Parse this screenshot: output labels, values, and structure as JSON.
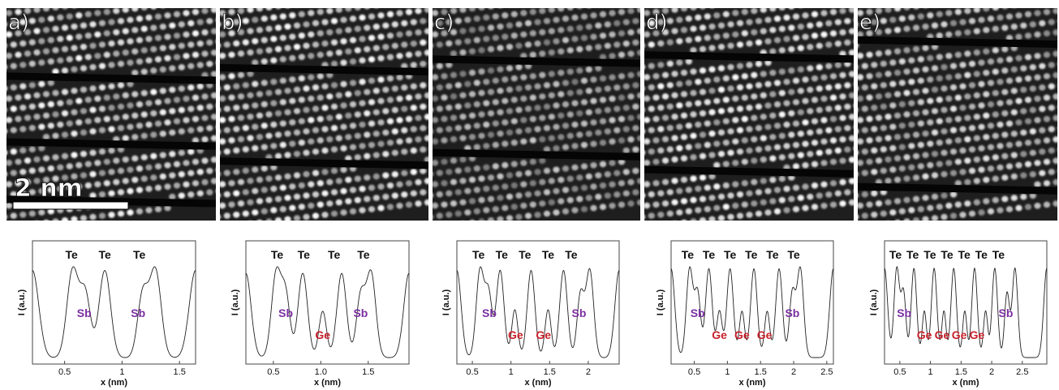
{
  "colors": {
    "sb": "#7a2fa0",
    "ge": "#c8202a",
    "te": "#111111"
  },
  "scale_bar": {
    "label": "2 nm",
    "length_nm": 2
  },
  "panels": [
    {
      "label": "a)",
      "bands": [
        0.32,
        0.63,
        0.9
      ],
      "tilt": -0.02,
      "tone": 1.0,
      "profile": {
        "xlabel": "x (nm)",
        "ylabel": "I (a.u.)",
        "xticks": [
          {
            "v": 0.5,
            "t": "0.5"
          },
          {
            "v": 1.0,
            "t": "1"
          },
          {
            "v": 1.5,
            "t": "1.5"
          }
        ],
        "xlim": [
          0.22,
          1.64
        ],
        "peaks": [
          {
            "x": 0.22,
            "h": 1.0,
            "w": 0.055
          },
          {
            "x": 0.57,
            "h": 1.0,
            "w": 0.05
          },
          {
            "x": 0.68,
            "h": 0.72,
            "w": 0.045
          },
          {
            "x": 0.85,
            "h": 1.0,
            "w": 0.05
          },
          {
            "x": 1.18,
            "h": 0.72,
            "w": 0.045
          },
          {
            "x": 1.29,
            "h": 1.0,
            "w": 0.05
          },
          {
            "x": 1.64,
            "h": 1.0,
            "w": 0.055
          }
        ],
        "labels": [
          {
            "t": "Te",
            "x": 0.56,
            "row": 0,
            "c": "te"
          },
          {
            "t": "Te",
            "x": 0.85,
            "row": 0,
            "c": "te"
          },
          {
            "t": "Te",
            "x": 1.15,
            "row": 0,
            "c": "te"
          },
          {
            "t": "Sb",
            "x": 0.67,
            "row": 1,
            "c": "sb"
          },
          {
            "t": "Sb",
            "x": 1.14,
            "row": 1,
            "c": "sb"
          }
        ]
      }
    },
    {
      "label": "b)",
      "bands": [
        0.28,
        0.72
      ],
      "tilt": -0.02,
      "tone": 1.0,
      "profile": {
        "xlabel": "x (nm)",
        "ylabel": "I (a.u.)",
        "xticks": [
          {
            "v": 0.5,
            "t": "0.5"
          },
          {
            "v": 1.0,
            "t": "1.0"
          },
          {
            "v": 1.5,
            "t": "1.5"
          }
        ],
        "xlim": [
          0.21,
          1.93
        ],
        "peaks": [
          {
            "x": 0.21,
            "h": 1.0,
            "w": 0.055
          },
          {
            "x": 0.53,
            "h": 1.0,
            "w": 0.05
          },
          {
            "x": 0.63,
            "h": 0.72,
            "w": 0.045
          },
          {
            "x": 0.81,
            "h": 1.0,
            "w": 0.05
          },
          {
            "x": 1.02,
            "h": 0.55,
            "w": 0.04
          },
          {
            "x": 1.22,
            "h": 1.0,
            "w": 0.05
          },
          {
            "x": 1.42,
            "h": 0.72,
            "w": 0.045
          },
          {
            "x": 1.53,
            "h": 1.0,
            "w": 0.05
          },
          {
            "x": 1.93,
            "h": 1.0,
            "w": 0.055
          }
        ],
        "labels": [
          {
            "t": "Te",
            "x": 0.54,
            "row": 0,
            "c": "te"
          },
          {
            "t": "Te",
            "x": 0.82,
            "row": 0,
            "c": "te"
          },
          {
            "t": "Te",
            "x": 1.14,
            "row": 0,
            "c": "te"
          },
          {
            "t": "Te",
            "x": 1.45,
            "row": 0,
            "c": "te"
          },
          {
            "t": "Sb",
            "x": 0.63,
            "row": 1,
            "c": "sb"
          },
          {
            "t": "Sb",
            "x": 1.42,
            "row": 1,
            "c": "sb"
          },
          {
            "t": "Ge",
            "x": 1.02,
            "row": 2,
            "c": "ge"
          }
        ]
      }
    },
    {
      "label": "c)",
      "bands": [
        0.24,
        0.68
      ],
      "tilt": -0.02,
      "tone": 0.8,
      "profile": {
        "xlabel": "x (nm)",
        "ylabel": "I (a.u.)",
        "xticks": [
          {
            "v": 0.5,
            "t": "0.5"
          },
          {
            "v": 1.0,
            "t": "1"
          },
          {
            "v": 1.5,
            "t": "1.5"
          },
          {
            "v": 2.0,
            "t": "2"
          }
        ],
        "xlim": [
          0.3,
          2.4
        ],
        "peaks": [
          {
            "x": 0.3,
            "h": 1.0,
            "w": 0.055
          },
          {
            "x": 0.6,
            "h": 1.0,
            "w": 0.05
          },
          {
            "x": 0.71,
            "h": 0.72,
            "w": 0.045
          },
          {
            "x": 0.86,
            "h": 1.0,
            "w": 0.05
          },
          {
            "x": 1.05,
            "h": 0.55,
            "w": 0.04
          },
          {
            "x": 1.26,
            "h": 1.0,
            "w": 0.05
          },
          {
            "x": 1.48,
            "h": 0.55,
            "w": 0.04
          },
          {
            "x": 1.68,
            "h": 1.0,
            "w": 0.05
          },
          {
            "x": 1.9,
            "h": 0.72,
            "w": 0.045
          },
          {
            "x": 2.02,
            "h": 1.0,
            "w": 0.05
          },
          {
            "x": 2.4,
            "h": 1.0,
            "w": 0.055
          }
        ],
        "labels": [
          {
            "t": "Te",
            "x": 0.58,
            "row": 0,
            "c": "te"
          },
          {
            "t": "Te",
            "x": 0.88,
            "row": 0,
            "c": "te"
          },
          {
            "t": "Te",
            "x": 1.18,
            "row": 0,
            "c": "te"
          },
          {
            "t": "Te",
            "x": 1.48,
            "row": 0,
            "c": "te"
          },
          {
            "t": "Te",
            "x": 1.78,
            "row": 0,
            "c": "te"
          },
          {
            "t": "Sb",
            "x": 0.72,
            "row": 1,
            "c": "sb"
          },
          {
            "t": "Sb",
            "x": 1.88,
            "row": 1,
            "c": "sb"
          },
          {
            "t": "Ge",
            "x": 1.06,
            "row": 2,
            "c": "ge"
          },
          {
            "t": "Ge",
            "x": 1.42,
            "row": 2,
            "c": "ge"
          }
        ]
      }
    },
    {
      "label": "d)",
      "bands": [
        0.22,
        0.76
      ],
      "tilt": -0.02,
      "tone": 1.0,
      "profile": {
        "xlabel": "x (nm)",
        "ylabel": "I (a.u.)",
        "xticks": [
          {
            "v": 0.5,
            "t": "0.5"
          },
          {
            "v": 1.0,
            "t": "1"
          },
          {
            "v": 1.5,
            "t": "1.5"
          },
          {
            "v": 2.0,
            "t": "2"
          },
          {
            "v": 2.5,
            "t": "2.5"
          }
        ],
        "xlim": [
          0.15,
          2.6
        ],
        "peaks": [
          {
            "x": 0.15,
            "h": 1.0,
            "w": 0.055
          },
          {
            "x": 0.43,
            "h": 1.0,
            "w": 0.05
          },
          {
            "x": 0.55,
            "h": 0.72,
            "w": 0.045
          },
          {
            "x": 0.72,
            "h": 1.0,
            "w": 0.05
          },
          {
            "x": 0.88,
            "h": 0.52,
            "w": 0.04
          },
          {
            "x": 1.04,
            "h": 1.0,
            "w": 0.05
          },
          {
            "x": 1.22,
            "h": 0.52,
            "w": 0.04
          },
          {
            "x": 1.4,
            "h": 1.0,
            "w": 0.05
          },
          {
            "x": 1.6,
            "h": 0.52,
            "w": 0.04
          },
          {
            "x": 1.78,
            "h": 1.0,
            "w": 0.05
          },
          {
            "x": 1.98,
            "h": 0.72,
            "w": 0.045
          },
          {
            "x": 2.1,
            "h": 1.0,
            "w": 0.05
          },
          {
            "x": 2.6,
            "h": 1.0,
            "w": 0.055
          }
        ],
        "labels": [
          {
            "t": "Te",
            "x": 0.4,
            "row": 0,
            "c": "te"
          },
          {
            "t": "Te",
            "x": 0.72,
            "row": 0,
            "c": "te"
          },
          {
            "t": "Te",
            "x": 1.04,
            "row": 0,
            "c": "te"
          },
          {
            "t": "Te",
            "x": 1.36,
            "row": 0,
            "c": "te"
          },
          {
            "t": "Te",
            "x": 1.68,
            "row": 0,
            "c": "te"
          },
          {
            "t": "Te",
            "x": 2.0,
            "row": 0,
            "c": "te"
          },
          {
            "t": "Sb",
            "x": 0.55,
            "row": 1,
            "c": "sb"
          },
          {
            "t": "Sb",
            "x": 1.98,
            "row": 1,
            "c": "sb"
          },
          {
            "t": "Ge",
            "x": 0.88,
            "row": 2,
            "c": "ge"
          },
          {
            "t": "Ge",
            "x": 1.22,
            "row": 2,
            "c": "ge"
          },
          {
            "t": "Ge",
            "x": 1.56,
            "row": 2,
            "c": "ge"
          }
        ]
      }
    },
    {
      "label": "e)",
      "bands": [
        0.15,
        0.84
      ],
      "tilt": -0.02,
      "tone": 0.92,
      "profile": {
        "xlabel": "x (nm)",
        "ylabel": "I (a.u.)",
        "xticks": [
          {
            "v": 0.5,
            "t": "0.5"
          },
          {
            "v": 1.0,
            "t": "1"
          },
          {
            "v": 1.5,
            "t": "1.5"
          },
          {
            "v": 2.0,
            "t": "2"
          },
          {
            "v": 2.5,
            "t": "2.5"
          }
        ],
        "xlim": [
          0.25,
          2.9
        ],
        "peaks": [
          {
            "x": 0.25,
            "h": 1.0,
            "w": 0.05
          },
          {
            "x": 0.45,
            "h": 1.0,
            "w": 0.045
          },
          {
            "x": 0.56,
            "h": 0.72,
            "w": 0.04
          },
          {
            "x": 0.73,
            "h": 1.0,
            "w": 0.045
          },
          {
            "x": 0.9,
            "h": 0.52,
            "w": 0.035
          },
          {
            "x": 1.06,
            "h": 1.0,
            "w": 0.045
          },
          {
            "x": 1.22,
            "h": 0.52,
            "w": 0.035
          },
          {
            "x": 1.38,
            "h": 1.0,
            "w": 0.045
          },
          {
            "x": 1.56,
            "h": 0.52,
            "w": 0.035
          },
          {
            "x": 1.72,
            "h": 1.0,
            "w": 0.045
          },
          {
            "x": 1.9,
            "h": 0.52,
            "w": 0.035
          },
          {
            "x": 2.05,
            "h": 1.0,
            "w": 0.045
          },
          {
            "x": 2.25,
            "h": 0.72,
            "w": 0.04
          },
          {
            "x": 2.38,
            "h": 1.0,
            "w": 0.045
          },
          {
            "x": 2.9,
            "h": 1.0,
            "w": 0.05
          }
        ],
        "labels": [
          {
            "t": "Te",
            "x": 0.43,
            "row": 0,
            "c": "te"
          },
          {
            "t": "Te",
            "x": 0.71,
            "row": 0,
            "c": "te"
          },
          {
            "t": "Te",
            "x": 0.99,
            "row": 0,
            "c": "te"
          },
          {
            "t": "Te",
            "x": 1.27,
            "row": 0,
            "c": "te"
          },
          {
            "t": "Te",
            "x": 1.55,
            "row": 0,
            "c": "te"
          },
          {
            "t": "Te",
            "x": 1.83,
            "row": 0,
            "c": "te"
          },
          {
            "t": "Te",
            "x": 2.11,
            "row": 0,
            "c": "te"
          },
          {
            "t": "Sb",
            "x": 0.57,
            "row": 1,
            "c": "sb"
          },
          {
            "t": "Sb",
            "x": 2.23,
            "row": 1,
            "c": "sb"
          },
          {
            "t": "Ge",
            "x": 0.9,
            "row": 2,
            "c": "ge"
          },
          {
            "t": "Ge",
            "x": 1.19,
            "row": 2,
            "c": "ge"
          },
          {
            "t": "Ge",
            "x": 1.47,
            "row": 2,
            "c": "ge"
          },
          {
            "t": "Ge",
            "x": 1.76,
            "row": 2,
            "c": "ge"
          }
        ]
      }
    }
  ]
}
